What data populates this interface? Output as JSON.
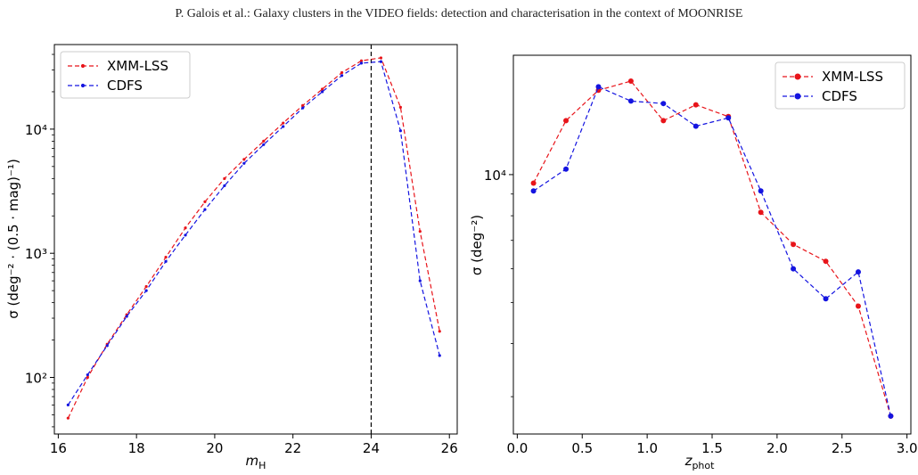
{
  "header": "P. Galois et al.: Galaxy clusters in the VIDEO fields: detection and characterisation in the context of MOONRISE",
  "colors": {
    "xmm": "#e8141a",
    "cdfs": "#1414e0",
    "axis": "#000000",
    "vline": "#000000"
  },
  "chart_data": [
    {
      "type": "line",
      "xlabel_var": "m",
      "xlabel_sub": "H",
      "ylabel": "σ (deg⁻² · (0.5 · mag)⁻¹)",
      "xlim": [
        15.9,
        26.2
      ],
      "ylim": [
        35,
        48000
      ],
      "log_y": true,
      "xticks": [
        16,
        18,
        20,
        22,
        24,
        26
      ],
      "xtick_labels": [
        "16",
        "18",
        "20",
        "22",
        "24",
        "26"
      ],
      "yticks": [
        100,
        1000,
        10000
      ],
      "ytick_labels": [
        "10²",
        "10³",
        "10⁴"
      ],
      "vline": 24,
      "legend_position": "upper-left",
      "marker_size": "small",
      "series": [
        {
          "name": "XMM-LSS",
          "color_key": "xmm",
          "x": [
            16.25,
            16.75,
            17.25,
            17.75,
            18.25,
            18.75,
            19.25,
            19.75,
            20.25,
            20.75,
            21.25,
            21.75,
            22.25,
            22.75,
            23.25,
            23.75,
            24.25,
            24.75,
            25.25,
            25.75
          ],
          "y": [
            47,
            100,
            185,
            320,
            540,
            930,
            1600,
            2600,
            4000,
            5700,
            8000,
            11200,
            15500,
            21000,
            28500,
            35500,
            37500,
            15000,
            1500,
            235
          ]
        },
        {
          "name": "CDFS",
          "color_key": "cdfs",
          "x": [
            16.25,
            16.75,
            17.25,
            17.75,
            18.25,
            18.75,
            19.25,
            19.75,
            20.25,
            20.75,
            21.25,
            21.75,
            22.25,
            22.75,
            23.25,
            23.75,
            24.25,
            24.75,
            25.25,
            25.75
          ],
          "y": [
            60,
            105,
            180,
            310,
            500,
            860,
            1400,
            2250,
            3500,
            5300,
            7500,
            10500,
            14800,
            20000,
            27000,
            34000,
            35000,
            9700,
            600,
            150
          ]
        }
      ]
    },
    {
      "type": "line",
      "xlabel_var": "z",
      "xlabel_sub": "phot",
      "ylabel": "σ (deg⁻²)",
      "xlim": [
        -0.03,
        3.03
      ],
      "ylim": [
        2450,
        19100
      ],
      "log_y": true,
      "xticks": [
        0.0,
        0.5,
        1.0,
        1.5,
        2.0,
        2.5,
        3.0
      ],
      "xtick_labels": [
        "0.0",
        "0.5",
        "1.0",
        "1.5",
        "2.0",
        "2.5",
        "3.0"
      ],
      "yticks": [
        10000
      ],
      "ytick_labels": [
        "10⁴"
      ],
      "legend_position": "upper-right",
      "marker_size": "large",
      "series": [
        {
          "name": "XMM-LSS",
          "color_key": "xmm",
          "x": [
            0.125,
            0.375,
            0.625,
            0.875,
            1.125,
            1.375,
            1.625,
            1.875,
            2.125,
            2.375,
            2.625,
            2.875
          ],
          "y": [
            9550,
            13400,
            15800,
            16600,
            13400,
            14600,
            13700,
            8150,
            6850,
            6250,
            4900,
            2700
          ]
        },
        {
          "name": "CDFS",
          "color_key": "cdfs",
          "x": [
            0.125,
            0.375,
            0.625,
            0.875,
            1.125,
            1.375,
            1.625,
            1.875,
            2.125,
            2.375,
            2.625,
            2.875
          ],
          "y": [
            9150,
            10300,
            16100,
            14900,
            14700,
            13000,
            13600,
            9150,
            6000,
            5100,
            5900,
            2700
          ]
        }
      ]
    }
  ]
}
